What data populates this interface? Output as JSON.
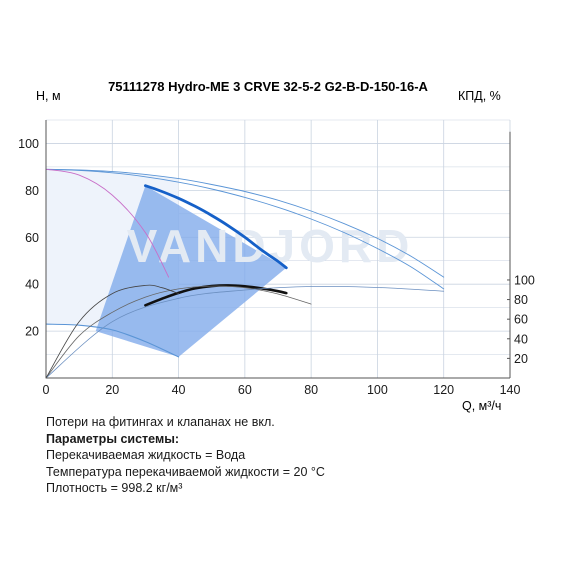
{
  "chart_data": {
    "type": "line",
    "title": "75111278 Hydro-ME 3 CRVE 32-5-2 G2-B-D-150-16-A",
    "xlabel": "Q, м³/ч",
    "ylabel": "H, м",
    "y2label": "КПД, %",
    "xlim": [
      0,
      140
    ],
    "ylim": [
      0,
      110
    ],
    "y2lim": [
      0,
      110
    ],
    "xticks": [
      0,
      20,
      40,
      60,
      80,
      100,
      120,
      140
    ],
    "yticks": [
      20,
      40,
      60,
      80,
      100
    ],
    "y2ticks": [
      20,
      40,
      60,
      80,
      100
    ],
    "grid": true,
    "watermark": "VANDJORD",
    "colors": {
      "envelope_fill": "#eef3fb",
      "operating_area": "#7fa9ea",
      "head_curve": "#1560c8",
      "thin_curve": "#5b95d6",
      "efficiency_curve": "#111111",
      "gridline": "#c9d3e0",
      "magenta_curve": "#c86ec8"
    },
    "series": [
      {
        "name": "",
        "role": "head-max",
        "x": [
          0,
          10,
          20,
          30,
          40,
          50,
          60,
          70,
          80,
          90,
          100,
          110,
          120
        ],
        "y": [
          89,
          88.7,
          88,
          86.8,
          85,
          82.5,
          79.5,
          75.8,
          71.2,
          65.8,
          59.5,
          52,
          43
        ]
      },
      {
        "name": "",
        "role": "head-duty",
        "x": [
          30,
          35,
          40,
          45,
          50,
          55,
          60,
          65,
          70,
          72.5
        ],
        "y": [
          82,
          79.5,
          76.6,
          73.2,
          69.3,
          64.9,
          60,
          54.6,
          49.7,
          47
        ]
      },
      {
        "name": "",
        "role": "head-mid",
        "x": [
          0,
          10,
          20,
          30,
          40,
          50,
          60,
          70,
          80,
          90,
          100,
          110,
          120
        ],
        "y": [
          89,
          88.5,
          87.5,
          85.8,
          83.5,
          80.6,
          77,
          72.8,
          67.8,
          62,
          55.2,
          47.5,
          38
        ]
      },
      {
        "name": "",
        "role": "head-min",
        "x": [
          0,
          10,
          20,
          30,
          40
        ],
        "y": [
          23,
          22.5,
          20.5,
          15.5,
          9
        ]
      },
      {
        "name": "",
        "role": "efficiency-duty",
        "x": [
          30,
          35,
          40,
          45,
          50,
          55,
          60,
          65,
          70,
          72.5
        ],
        "y": [
          31,
          33.8,
          36.3,
          38.2,
          39.2,
          39.5,
          39.1,
          38.2,
          37,
          36.2
        ]
      },
      {
        "name": "",
        "role": "efficiency-thin",
        "x": [
          0,
          10,
          20,
          30,
          40,
          50,
          60,
          70,
          80
        ],
        "y": [
          0,
          18,
          28,
          34.5,
          38,
          39.2,
          38.5,
          35.8,
          31.5
        ]
      },
      {
        "name": "",
        "role": "efficiency-extended",
        "x": [
          0,
          20,
          40,
          60,
          80,
          100,
          120
        ],
        "y": [
          0,
          24,
          34,
          37.5,
          39,
          38.6,
          37
        ]
      },
      {
        "name": "",
        "role": "power-small",
        "x": [
          0,
          10,
          20,
          30,
          35,
          40
        ],
        "y": [
          0,
          24,
          36,
          39.5,
          38.5,
          36
        ]
      },
      {
        "name": "",
        "role": "magenta",
        "x": [
          0,
          10,
          20,
          30,
          37
        ],
        "y": [
          89,
          86.5,
          78,
          62,
          43
        ]
      }
    ],
    "operating_area": {
      "x": [
        30,
        72.5,
        40,
        15
      ],
      "y": [
        82,
        47,
        9,
        20
      ]
    }
  },
  "notes": {
    "line1": "Потери на фитингах и клапанах не вкл.",
    "heading": "Параметры системы:",
    "line2": "Перекачиваемая жидкость = Вода",
    "line3": "Температура перекачиваемой жидкости = 20 °C",
    "line4": "Плотность = 998.2 кг/м³"
  }
}
